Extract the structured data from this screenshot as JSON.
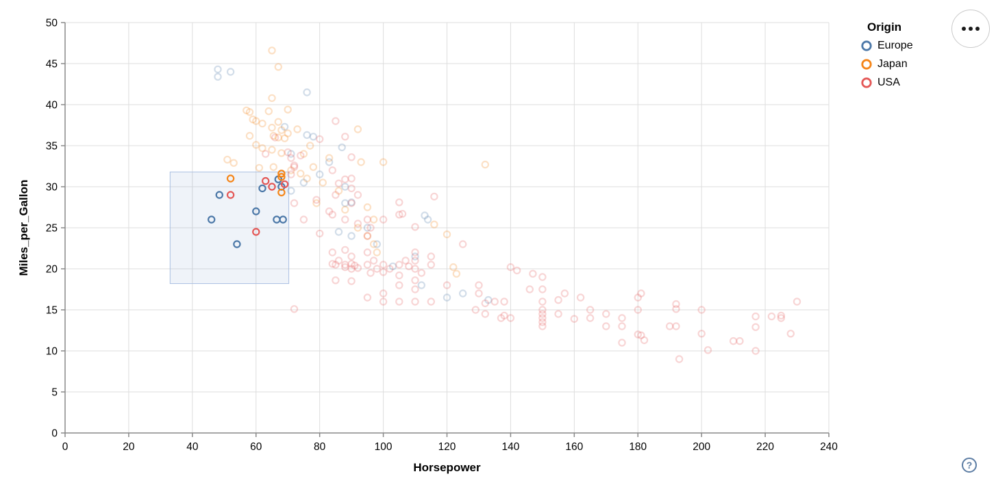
{
  "chart_data": {
    "type": "scatter",
    "title": "",
    "xlabel": "Horsepower",
    "ylabel": "Miles_per_Gallon",
    "xlim": [
      0,
      240
    ],
    "ylim": [
      0,
      50
    ],
    "x_ticks": [
      0,
      20,
      40,
      60,
      80,
      100,
      120,
      140,
      160,
      180,
      200,
      220,
      240
    ],
    "y_ticks": [
      0,
      5,
      10,
      15,
      20,
      25,
      30,
      35,
      40,
      45,
      50
    ],
    "grid": true,
    "colors": {
      "grid": "#dddddd",
      "axis": "#888888",
      "label": "#000000"
    },
    "legend": {
      "title": "Origin",
      "position": "top-right",
      "entries": [
        {
          "label": "Europe",
          "color": "#4c78a8"
        },
        {
          "label": "Japan",
          "color": "#f58518"
        },
        {
          "label": "USA",
          "color": "#e45756"
        }
      ]
    },
    "brush": {
      "x": [
        33,
        70.3
      ],
      "y": [
        18.2,
        31.8
      ],
      "fill": "#6385c7",
      "fill_opacity": 0.1,
      "stroke": "#a9bfe2"
    },
    "point_style": {
      "shape": "ring",
      "radius": 4.6,
      "stroke_width": 2.2,
      "faded_opacity": 0.25,
      "selected_opacity": 1,
      "selection_rule": "points inside brush extent are fully opaque, others faded"
    },
    "series": [
      {
        "name": "Europe",
        "color": "#4c78a8",
        "points": [
          [
            46,
            26
          ],
          [
            48.5,
            29
          ],
          [
            54,
            23
          ],
          [
            60,
            27
          ],
          [
            62,
            29.8
          ],
          [
            67,
            30.9
          ],
          [
            68,
            30
          ],
          [
            66.5,
            26
          ],
          [
            68.5,
            26
          ],
          [
            48,
            43.4
          ],
          [
            48,
            44.3
          ],
          [
            52,
            44
          ],
          [
            76,
            41.5
          ],
          [
            69,
            37.3
          ],
          [
            78,
            36.1
          ],
          [
            76,
            36.3
          ],
          [
            87,
            34.8
          ],
          [
            71,
            34
          ],
          [
            83,
            33
          ],
          [
            80,
            31.5
          ],
          [
            75,
            30.5
          ],
          [
            88,
            30
          ],
          [
            90,
            28.1
          ],
          [
            88,
            28
          ],
          [
            113,
            26.5
          ],
          [
            95,
            25
          ],
          [
            90,
            24
          ],
          [
            86,
            24.5
          ],
          [
            98,
            23
          ],
          [
            110,
            21.5
          ],
          [
            103,
            20.3
          ],
          [
            112,
            18
          ],
          [
            125,
            17
          ],
          [
            133,
            16.2
          ],
          [
            120,
            16.5
          ],
          [
            71,
            29.5
          ],
          [
            114,
            26
          ]
        ]
      },
      {
        "name": "Japan",
        "color": "#f58518",
        "points": [
          [
            52,
            31
          ],
          [
            68,
            31.6
          ],
          [
            68,
            31.2
          ],
          [
            68,
            29.3
          ],
          [
            65,
            46.6
          ],
          [
            67,
            44.6
          ],
          [
            65,
            40.8
          ],
          [
            70,
            39.4
          ],
          [
            58,
            39.1
          ],
          [
            57,
            39.3
          ],
          [
            64,
            39.2
          ],
          [
            60,
            38
          ],
          [
            59,
            38.2
          ],
          [
            67,
            37.9
          ],
          [
            62,
            37.7
          ],
          [
            73,
            37
          ],
          [
            92,
            37
          ],
          [
            65,
            37.2
          ],
          [
            68,
            36.9
          ],
          [
            67,
            36
          ],
          [
            58,
            36.2
          ],
          [
            60,
            35.1
          ],
          [
            65.5,
            36.2
          ],
          [
            69,
            35.9
          ],
          [
            62,
            34.7
          ],
          [
            65,
            34.5
          ],
          [
            68,
            34.1
          ],
          [
            51,
            33.3
          ],
          [
            53,
            32.9
          ],
          [
            61,
            32.3
          ],
          [
            65.5,
            32.4
          ],
          [
            132,
            32.7
          ],
          [
            100,
            33
          ],
          [
            93,
            33
          ],
          [
            77,
            35
          ],
          [
            75,
            34
          ],
          [
            83,
            33.5
          ],
          [
            78,
            32.4
          ],
          [
            74,
            31.6
          ],
          [
            76,
            31
          ],
          [
            81,
            30.5
          ],
          [
            86,
            29.5
          ],
          [
            79,
            28
          ],
          [
            95,
            27.5
          ],
          [
            88,
            27.2
          ],
          [
            97,
            26
          ],
          [
            116,
            25.4
          ],
          [
            92,
            25
          ],
          [
            120,
            24.2
          ],
          [
            95,
            24
          ],
          [
            97,
            23
          ],
          [
            98,
            22
          ],
          [
            122,
            20.2
          ],
          [
            123,
            19.4
          ],
          [
            70,
            36.5
          ],
          [
            71,
            32
          ]
        ]
      },
      {
        "name": "USA",
        "color": "#e45756",
        "points": [
          [
            52,
            29
          ],
          [
            60,
            24.5
          ],
          [
            63,
            30.7
          ],
          [
            65,
            30
          ],
          [
            69,
            30.3
          ],
          [
            85,
            38
          ],
          [
            88,
            36.1
          ],
          [
            80,
            35.8
          ],
          [
            66,
            36
          ],
          [
            70,
            34.2
          ],
          [
            63,
            34
          ],
          [
            71,
            33.5
          ],
          [
            74,
            33.8
          ],
          [
            90,
            33.6
          ],
          [
            72,
            32.4
          ],
          [
            72,
            32.6
          ],
          [
            84,
            32
          ],
          [
            90,
            31
          ],
          [
            71,
            31.5
          ],
          [
            88,
            30.9
          ],
          [
            86,
            30.4
          ],
          [
            72,
            28
          ],
          [
            75,
            26
          ],
          [
            79,
            28.4
          ],
          [
            83,
            27
          ],
          [
            84,
            26.6
          ],
          [
            85,
            29
          ],
          [
            88,
            26
          ],
          [
            90,
            28
          ],
          [
            92,
            25.5
          ],
          [
            95,
            26
          ],
          [
            96,
            25
          ],
          [
            100,
            26
          ],
          [
            105,
            26.6
          ],
          [
            90,
            29.8
          ],
          [
            92,
            29
          ],
          [
            105,
            28.1
          ],
          [
            106,
            26.7
          ],
          [
            116,
            28.8
          ],
          [
            110,
            25.1
          ],
          [
            125,
            23
          ],
          [
            80,
            24.3
          ],
          [
            84,
            22
          ],
          [
            85,
            20.5
          ],
          [
            86,
            21
          ],
          [
            88,
            20.2
          ],
          [
            88,
            22.3
          ],
          [
            90,
            20
          ],
          [
            90,
            21.5
          ],
          [
            92,
            20.1
          ],
          [
            95,
            20.5
          ],
          [
            95,
            22
          ],
          [
            95,
            24
          ],
          [
            97,
            21
          ],
          [
            98,
            20
          ],
          [
            100,
            20.5
          ],
          [
            100,
            19.6
          ],
          [
            102,
            20
          ],
          [
            105,
            20.5
          ],
          [
            105,
            19.2
          ],
          [
            107,
            21
          ],
          [
            108,
            20.3
          ],
          [
            110,
            22
          ],
          [
            110,
            21
          ],
          [
            110,
            20
          ],
          [
            112,
            19.5
          ],
          [
            115,
            20.5
          ],
          [
            115,
            21.5
          ],
          [
            84,
            20.6
          ],
          [
            85,
            18.6
          ],
          [
            90,
            18.5
          ],
          [
            96,
            19.5
          ],
          [
            105,
            18
          ],
          [
            110,
            18.6
          ],
          [
            88,
            20.5
          ],
          [
            90,
            20.6
          ],
          [
            91,
            20.4
          ],
          [
            140,
            20.2
          ],
          [
            95,
            16.5
          ],
          [
            100,
            17
          ],
          [
            100,
            16
          ],
          [
            105,
            16
          ],
          [
            110,
            17.5
          ],
          [
            110,
            16
          ],
          [
            115,
            16
          ],
          [
            120,
            18
          ],
          [
            130,
            18
          ],
          [
            130,
            17
          ],
          [
            135,
            16
          ],
          [
            138,
            16
          ],
          [
            72,
            15.1
          ],
          [
            132,
            15.8
          ],
          [
            162,
            16.5
          ],
          [
            181,
            17
          ],
          [
            142,
            19.8
          ],
          [
            147,
            19.4
          ],
          [
            146,
            17.5
          ],
          [
            150,
            19
          ],
          [
            150,
            17.5
          ],
          [
            157,
            17
          ],
          [
            138,
            14.3
          ],
          [
            140,
            14
          ],
          [
            129,
            15
          ],
          [
            132,
            14.5
          ],
          [
            137,
            14
          ],
          [
            150,
            16
          ],
          [
            150,
            15
          ],
          [
            150,
            14.5
          ],
          [
            150,
            14
          ],
          [
            150,
            13.5
          ],
          [
            150,
            13
          ],
          [
            155,
            14.5
          ],
          [
            160,
            13.9
          ],
          [
            165,
            15
          ],
          [
            165,
            14
          ],
          [
            170,
            13
          ],
          [
            170,
            14.5
          ],
          [
            175,
            14
          ],
          [
            175,
            13
          ],
          [
            180,
            16.5
          ],
          [
            180,
            15
          ],
          [
            180,
            12
          ],
          [
            155,
            16.2
          ],
          [
            175,
            11
          ],
          [
            181,
            11.9
          ],
          [
            182,
            11.3
          ],
          [
            190,
            13
          ],
          [
            192,
            15.7
          ],
          [
            192,
            15.1
          ],
          [
            192,
            13
          ],
          [
            193,
            9
          ],
          [
            200,
            15
          ],
          [
            200,
            12.1
          ],
          [
            202,
            10.1
          ],
          [
            210,
            11.2
          ],
          [
            212,
            11.2
          ],
          [
            217,
            10
          ],
          [
            217,
            14.2
          ],
          [
            217,
            12.9
          ],
          [
            222,
            14.2
          ],
          [
            225,
            14
          ],
          [
            225,
            14.3
          ],
          [
            228,
            12.1
          ],
          [
            230,
            16
          ]
        ]
      }
    ]
  },
  "controls": {
    "menu_button": {
      "icon": "ellipsis"
    },
    "help_button": {
      "icon": "question-mark",
      "label": "?"
    }
  }
}
